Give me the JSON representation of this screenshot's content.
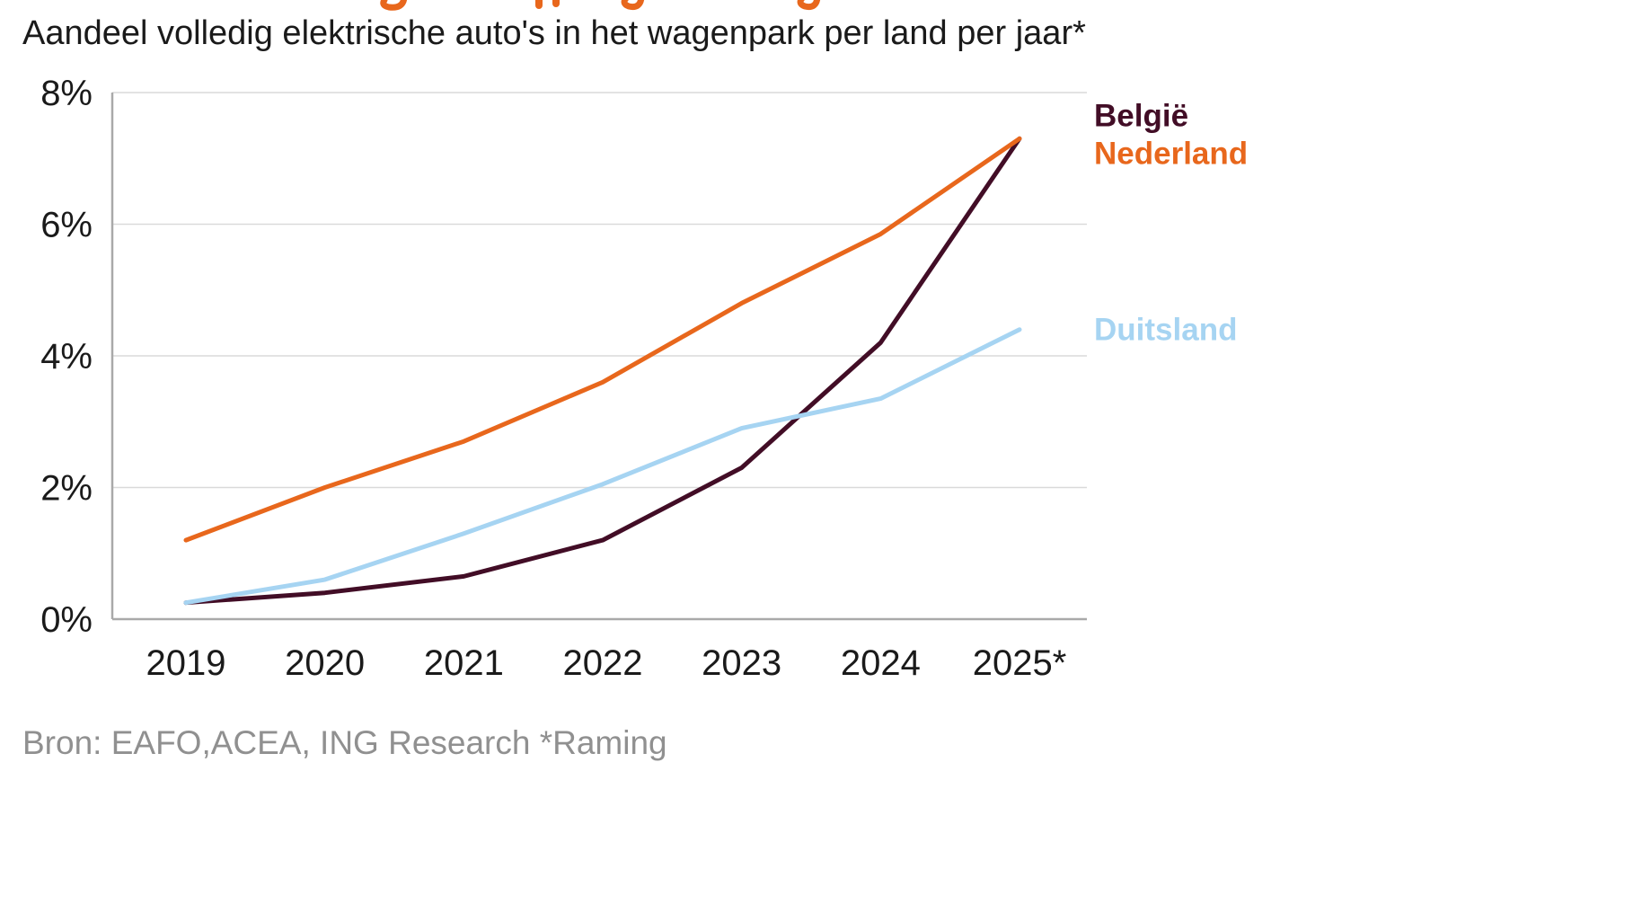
{
  "header": {
    "subtitle": "Aandeel volledig elektrische auto's in het wagenpark per land per jaar*"
  },
  "footer": {
    "source": "Bron: EAFO,ACEA, ING Research *Raming"
  },
  "colors": {
    "belgie": "#420D26",
    "nederland": "#E8671C",
    "duitsland": "#A6D4F2",
    "grid": "#DADADA",
    "axis": "#A9A9A9",
    "text": "#1a1a1a",
    "source_text": "#909090",
    "clipped_title_fragment": "#E8671C"
  },
  "chart_data": {
    "type": "line",
    "title": "Aandeel volledig elektrische auto's in het wagenpark per land per jaar*",
    "x": [
      "2019",
      "2020",
      "2021",
      "2022",
      "2023",
      "2024",
      "2025*"
    ],
    "series": [
      {
        "name": "België",
        "color": "#420D26",
        "values": [
          0.25,
          0.4,
          0.65,
          1.2,
          2.3,
          4.2,
          7.3
        ],
        "label_dy": -14
      },
      {
        "name": "Nederland",
        "color": "#E8671C",
        "values": [
          1.2,
          2.0,
          2.7,
          3.6,
          4.8,
          5.85,
          7.3
        ],
        "label_dy": 28
      },
      {
        "name": "Duitsland",
        "color": "#A6D4F2",
        "values": [
          0.25,
          0.6,
          1.3,
          2.05,
          2.9,
          3.35,
          4.4
        ],
        "label_dy": 12
      }
    ],
    "xlabel": "",
    "ylabel": "",
    "ylim": [
      0,
      8
    ],
    "yticks": [
      0,
      2,
      4,
      6,
      8
    ],
    "ytick_labels": [
      "0%",
      "2%",
      "4%",
      "6%",
      "8%"
    ],
    "grid": true,
    "legend_position": "right"
  }
}
